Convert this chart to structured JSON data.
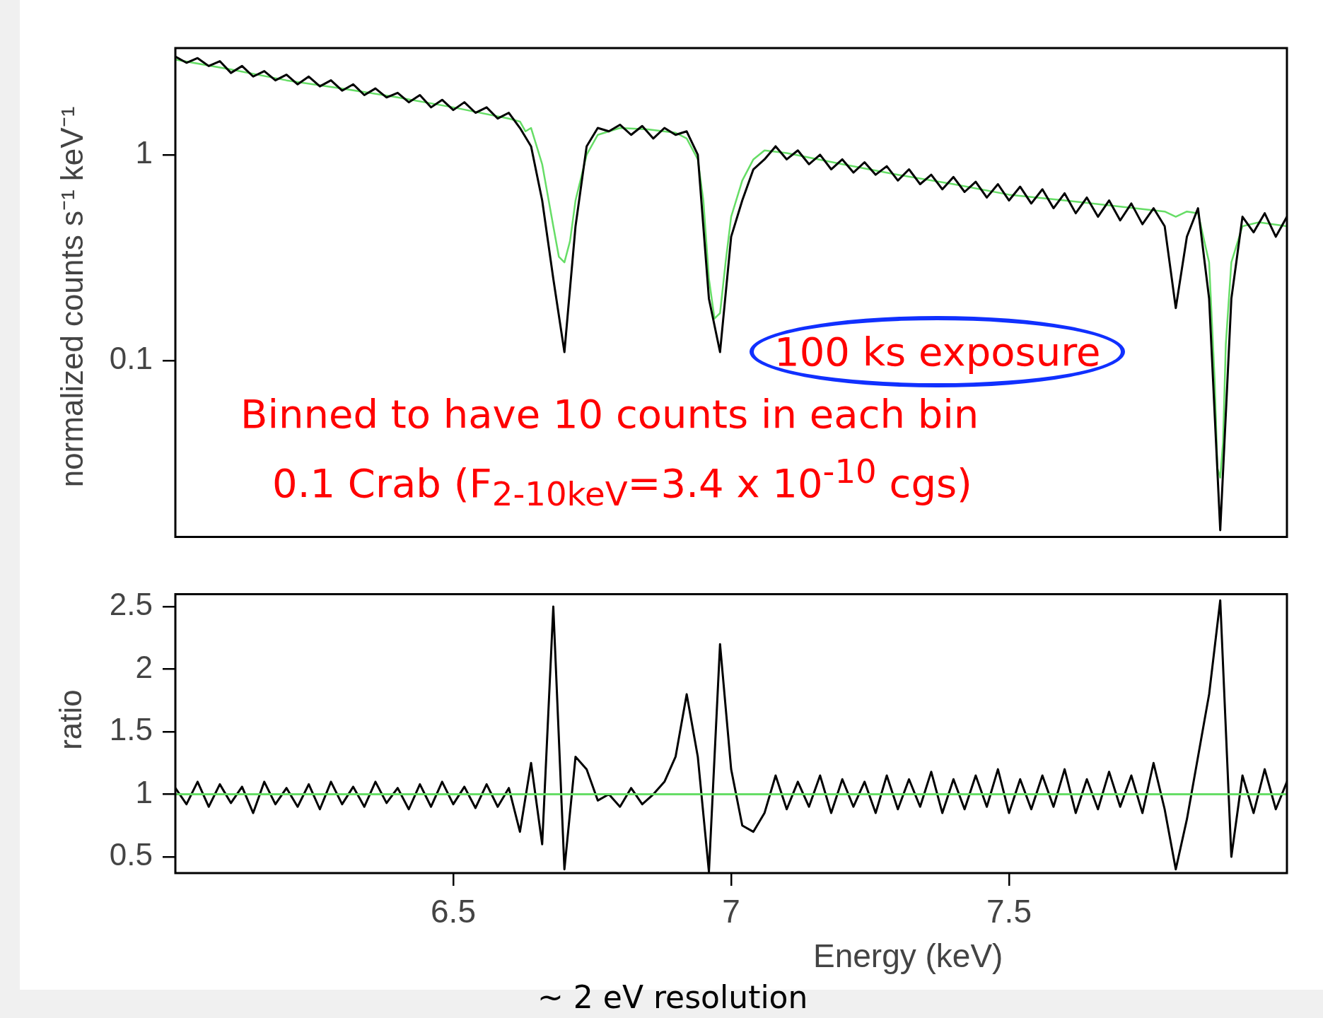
{
  "chart_data": [
    {
      "type": "line",
      "ylabel": "normalized counts s⁻¹ keV⁻¹",
      "log": true,
      "tick_labels": "y",
      "xlim": [
        6,
        8
      ],
      "ylim": [
        0.0139,
        3.3
      ],
      "yticks": [
        0.1,
        1
      ],
      "annotations": [
        "100 ks exposure",
        "Binned to have 10 counts in each bin",
        "0.1 Crab (F$_{2-10keV}$=3.4 x 10$^{-10}$ cgs)"
      ],
      "series": [
        {
          "color": "#000000",
          "x": [
            6.0,
            6.02,
            6.04,
            6.06,
            6.08,
            6.1,
            6.12,
            6.14,
            6.16,
            6.18,
            6.2,
            6.22,
            6.24,
            6.26,
            6.28,
            6.3,
            6.32,
            6.34,
            6.36,
            6.38,
            6.4,
            6.42,
            6.44,
            6.46,
            6.48,
            6.5,
            6.52,
            6.54,
            6.56,
            6.58,
            6.6,
            6.62,
            6.64,
            6.66,
            6.68,
            6.7,
            6.72,
            6.74,
            6.76,
            6.78,
            6.8,
            6.82,
            6.84,
            6.86,
            6.88,
            6.9,
            6.92,
            6.94,
            6.96,
            6.98,
            7.0,
            7.02,
            7.04,
            7.06,
            7.08,
            7.1,
            7.12,
            7.14,
            7.16,
            7.18,
            7.2,
            7.22,
            7.24,
            7.26,
            7.28,
            7.3,
            7.32,
            7.34,
            7.36,
            7.38,
            7.4,
            7.42,
            7.44,
            7.46,
            7.48,
            7.5,
            7.52,
            7.54,
            7.56,
            7.58,
            7.6,
            7.62,
            7.64,
            7.66,
            7.68,
            7.7,
            7.72,
            7.74,
            7.76,
            7.78,
            7.8,
            7.82,
            7.84,
            7.86,
            7.88,
            7.9,
            7.92,
            7.94,
            7.96,
            7.98,
            8.0
          ],
          "values": [
            3.0,
            2.8,
            2.95,
            2.7,
            2.85,
            2.5,
            2.7,
            2.4,
            2.55,
            2.3,
            2.45,
            2.2,
            2.4,
            2.15,
            2.3,
            2.05,
            2.2,
            1.95,
            2.1,
            1.9,
            2.0,
            1.8,
            1.95,
            1.7,
            1.85,
            1.65,
            1.8,
            1.6,
            1.7,
            1.5,
            1.6,
            1.35,
            1.1,
            0.6,
            0.25,
            0.11,
            0.45,
            1.1,
            1.35,
            1.3,
            1.4,
            1.25,
            1.38,
            1.2,
            1.35,
            1.25,
            1.3,
            1.0,
            0.2,
            0.11,
            0.4,
            0.6,
            0.85,
            0.95,
            1.1,
            0.95,
            1.05,
            0.9,
            1.0,
            0.85,
            0.95,
            0.82,
            0.92,
            0.8,
            0.88,
            0.75,
            0.85,
            0.72,
            0.8,
            0.68,
            0.78,
            0.66,
            0.74,
            0.62,
            0.72,
            0.6,
            0.7,
            0.58,
            0.68,
            0.55,
            0.65,
            0.52,
            0.62,
            0.5,
            0.6,
            0.48,
            0.58,
            0.46,
            0.55,
            0.45,
            0.18,
            0.4,
            0.55,
            0.2,
            0.015,
            0.2,
            0.5,
            0.42,
            0.52,
            0.4,
            0.5
          ]
        },
        {
          "color": "#66dd66",
          "x": [
            6.0,
            6.1,
            6.2,
            6.3,
            6.4,
            6.5,
            6.6,
            6.62,
            6.63,
            6.64,
            6.66,
            6.68,
            6.69,
            6.7,
            6.71,
            6.72,
            6.74,
            6.76,
            6.8,
            6.85,
            6.9,
            6.92,
            6.94,
            6.95,
            6.96,
            6.97,
            6.98,
            6.99,
            7.0,
            7.02,
            7.04,
            7.06,
            7.1,
            7.2,
            7.3,
            7.4,
            7.5,
            7.6,
            7.7,
            7.78,
            7.8,
            7.82,
            7.84,
            7.86,
            7.87,
            7.875,
            7.88,
            7.885,
            7.89,
            7.9,
            7.92,
            7.95,
            8.0
          ],
          "values": [
            2.9,
            2.6,
            2.3,
            2.1,
            1.9,
            1.7,
            1.5,
            1.45,
            1.3,
            1.35,
            0.9,
            0.45,
            0.32,
            0.3,
            0.38,
            0.6,
            1.0,
            1.25,
            1.35,
            1.33,
            1.28,
            1.2,
            0.95,
            0.6,
            0.25,
            0.16,
            0.17,
            0.3,
            0.5,
            0.75,
            0.95,
            1.05,
            1.02,
            0.9,
            0.8,
            0.72,
            0.64,
            0.6,
            0.56,
            0.53,
            0.5,
            0.53,
            0.52,
            0.3,
            0.08,
            0.03,
            0.027,
            0.04,
            0.12,
            0.3,
            0.45,
            0.47,
            0.45
          ]
        }
      ]
    },
    {
      "type": "line",
      "xlabel": "Energy (keV)",
      "ylabel": "ratio",
      "xlim": [
        6,
        8
      ],
      "ylim": [
        0.37,
        2.6
      ],
      "xticks": [
        6.5,
        7,
        7.5
      ],
      "yticks": [
        0.5,
        1,
        1.5,
        2,
        2.5
      ],
      "ref_lines": [
        {
          "axis": "y",
          "value": 1,
          "color": "#66dd66"
        }
      ],
      "annotations": [
        "~ 2 eV resolution"
      ],
      "series": [
        {
          "color": "#000000",
          "x": [
            6.0,
            6.02,
            6.04,
            6.06,
            6.08,
            6.1,
            6.12,
            6.14,
            6.16,
            6.18,
            6.2,
            6.22,
            6.24,
            6.26,
            6.28,
            6.3,
            6.32,
            6.34,
            6.36,
            6.38,
            6.4,
            6.42,
            6.44,
            6.46,
            6.48,
            6.5,
            6.52,
            6.54,
            6.56,
            6.58,
            6.6,
            6.62,
            6.64,
            6.66,
            6.68,
            6.7,
            6.72,
            6.74,
            6.76,
            6.78,
            6.8,
            6.82,
            6.84,
            6.86,
            6.88,
            6.9,
            6.92,
            6.94,
            6.96,
            6.98,
            7.0,
            7.02,
            7.04,
            7.06,
            7.08,
            7.1,
            7.12,
            7.14,
            7.16,
            7.18,
            7.2,
            7.22,
            7.24,
            7.26,
            7.28,
            7.3,
            7.32,
            7.34,
            7.36,
            7.38,
            7.4,
            7.42,
            7.44,
            7.46,
            7.48,
            7.5,
            7.52,
            7.54,
            7.56,
            7.58,
            7.6,
            7.62,
            7.64,
            7.66,
            7.68,
            7.7,
            7.72,
            7.74,
            7.76,
            7.78,
            7.8,
            7.82,
            7.84,
            7.86,
            7.88,
            7.9,
            7.92,
            7.94,
            7.96,
            7.98,
            8.0
          ],
          "values": [
            1.05,
            0.92,
            1.1,
            0.9,
            1.08,
            0.93,
            1.06,
            0.85,
            1.1,
            0.92,
            1.05,
            0.9,
            1.08,
            0.88,
            1.1,
            0.92,
            1.06,
            0.9,
            1.1,
            0.93,
            1.05,
            0.88,
            1.08,
            0.9,
            1.1,
            0.92,
            1.06,
            0.89,
            1.08,
            0.9,
            1.05,
            0.7,
            1.25,
            0.6,
            2.5,
            0.4,
            1.3,
            1.2,
            0.95,
            1.0,
            0.9,
            1.05,
            0.92,
            1.0,
            1.1,
            1.3,
            1.8,
            1.3,
            0.38,
            2.2,
            1.2,
            0.75,
            0.7,
            0.85,
            1.15,
            0.88,
            1.1,
            0.9,
            1.15,
            0.85,
            1.12,
            0.9,
            1.1,
            0.85,
            1.15,
            0.88,
            1.12,
            0.9,
            1.18,
            0.85,
            1.12,
            0.88,
            1.15,
            0.9,
            1.2,
            0.85,
            1.12,
            0.88,
            1.15,
            0.9,
            1.2,
            0.85,
            1.12,
            0.88,
            1.18,
            0.9,
            1.15,
            0.85,
            1.25,
            0.88,
            0.4,
            0.8,
            1.3,
            1.8,
            2.55,
            0.5,
            1.15,
            0.85,
            1.2,
            0.88,
            1.1
          ]
        }
      ]
    }
  ]
}
